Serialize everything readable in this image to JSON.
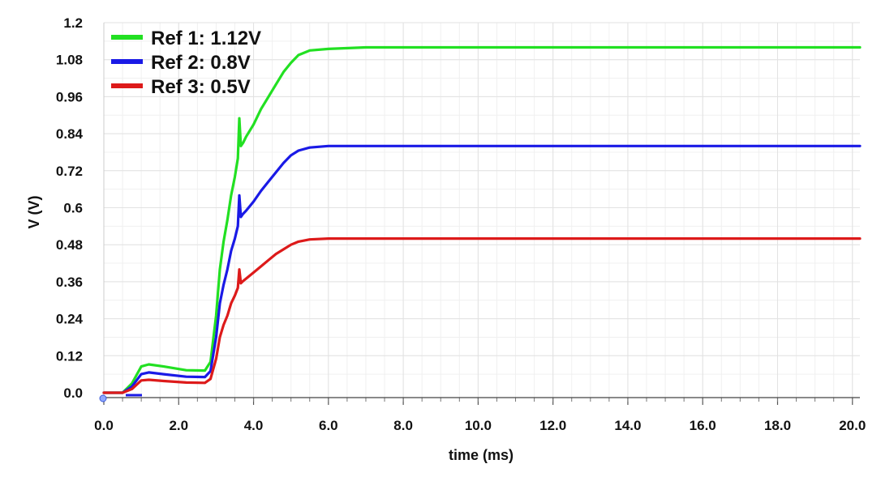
{
  "chart_data": {
    "type": "line",
    "title": "",
    "xlabel": "time (ms)",
    "ylabel": "V (V)",
    "xlim": [
      0,
      20.2
    ],
    "ylim": [
      0,
      1.2
    ],
    "x_ticks": [
      0,
      2,
      4,
      6,
      8,
      10,
      12,
      14,
      16,
      18,
      20
    ],
    "x_tick_labels": [
      "0.0",
      "2.0",
      "4.0",
      "6.0",
      "8.0",
      "10.0",
      "12.0",
      "14.0",
      "16.0",
      "18.0",
      "20.0"
    ],
    "y_ticks": [
      0,
      0.12,
      0.24,
      0.36,
      0.48,
      0.6,
      0.72,
      0.84,
      0.96,
      1.08,
      1.2
    ],
    "y_tick_labels": [
      "0.0",
      "0.12",
      "0.24",
      "0.36",
      "0.48",
      "0.6",
      "0.72",
      "0.84",
      "0.96",
      "1.08",
      "1.2"
    ],
    "grid": true,
    "legend_position": "top-left",
    "series": [
      {
        "name": "Ref 1: 1.12V",
        "color": "#22e022",
        "x": [
          0,
          0.5,
          0.75,
          1.0,
          1.2,
          1.6,
          2.2,
          2.7,
          2.85,
          3.0,
          3.1,
          3.2,
          3.3,
          3.4,
          3.5,
          3.58,
          3.62,
          3.66,
          3.72,
          3.8,
          4.0,
          4.2,
          4.4,
          4.6,
          4.8,
          5.0,
          5.2,
          5.5,
          6.0,
          7.0,
          8.0,
          10.0,
          14.0,
          20.2
        ],
        "y": [
          0,
          0,
          0.03,
          0.085,
          0.092,
          0.085,
          0.073,
          0.072,
          0.1,
          0.25,
          0.4,
          0.49,
          0.56,
          0.64,
          0.7,
          0.76,
          0.89,
          0.8,
          0.81,
          0.83,
          0.87,
          0.92,
          0.96,
          1.0,
          1.04,
          1.07,
          1.095,
          1.11,
          1.115,
          1.12,
          1.12,
          1.12,
          1.12,
          1.12
        ]
      },
      {
        "name": "Ref 2: 0.8V",
        "color": "#1a1ae6",
        "x": [
          0,
          0.5,
          0.75,
          1.0,
          1.2,
          1.6,
          2.2,
          2.7,
          2.85,
          3.0,
          3.1,
          3.2,
          3.3,
          3.4,
          3.5,
          3.58,
          3.62,
          3.66,
          3.72,
          3.8,
          4.0,
          4.2,
          4.4,
          4.6,
          4.8,
          5.0,
          5.2,
          5.5,
          6.0,
          7.0,
          8.0,
          10.0,
          14.0,
          20.2
        ],
        "y": [
          0,
          0,
          0.02,
          0.06,
          0.066,
          0.06,
          0.052,
          0.051,
          0.07,
          0.18,
          0.29,
          0.35,
          0.4,
          0.46,
          0.5,
          0.54,
          0.64,
          0.57,
          0.58,
          0.59,
          0.62,
          0.655,
          0.685,
          0.715,
          0.745,
          0.77,
          0.785,
          0.795,
          0.8,
          0.8,
          0.8,
          0.8,
          0.8,
          0.8
        ]
      },
      {
        "name": "Ref 3: 0.5V",
        "color": "#dd1a1a",
        "x": [
          0,
          0.5,
          0.75,
          1.0,
          1.2,
          1.6,
          2.2,
          2.7,
          2.85,
          3.0,
          3.1,
          3.2,
          3.3,
          3.4,
          3.5,
          3.58,
          3.62,
          3.66,
          3.72,
          3.8,
          4.0,
          4.2,
          4.4,
          4.6,
          4.8,
          5.0,
          5.2,
          5.5,
          6.0,
          7.0,
          8.0,
          10.0,
          14.0,
          20.2
        ],
        "y": [
          0,
          0,
          0.012,
          0.04,
          0.042,
          0.038,
          0.033,
          0.032,
          0.045,
          0.11,
          0.18,
          0.22,
          0.25,
          0.29,
          0.315,
          0.34,
          0.4,
          0.355,
          0.362,
          0.37,
          0.39,
          0.41,
          0.43,
          0.45,
          0.465,
          0.48,
          0.49,
          0.497,
          0.5,
          0.5,
          0.5,
          0.5,
          0.5,
          0.5
        ]
      }
    ]
  }
}
